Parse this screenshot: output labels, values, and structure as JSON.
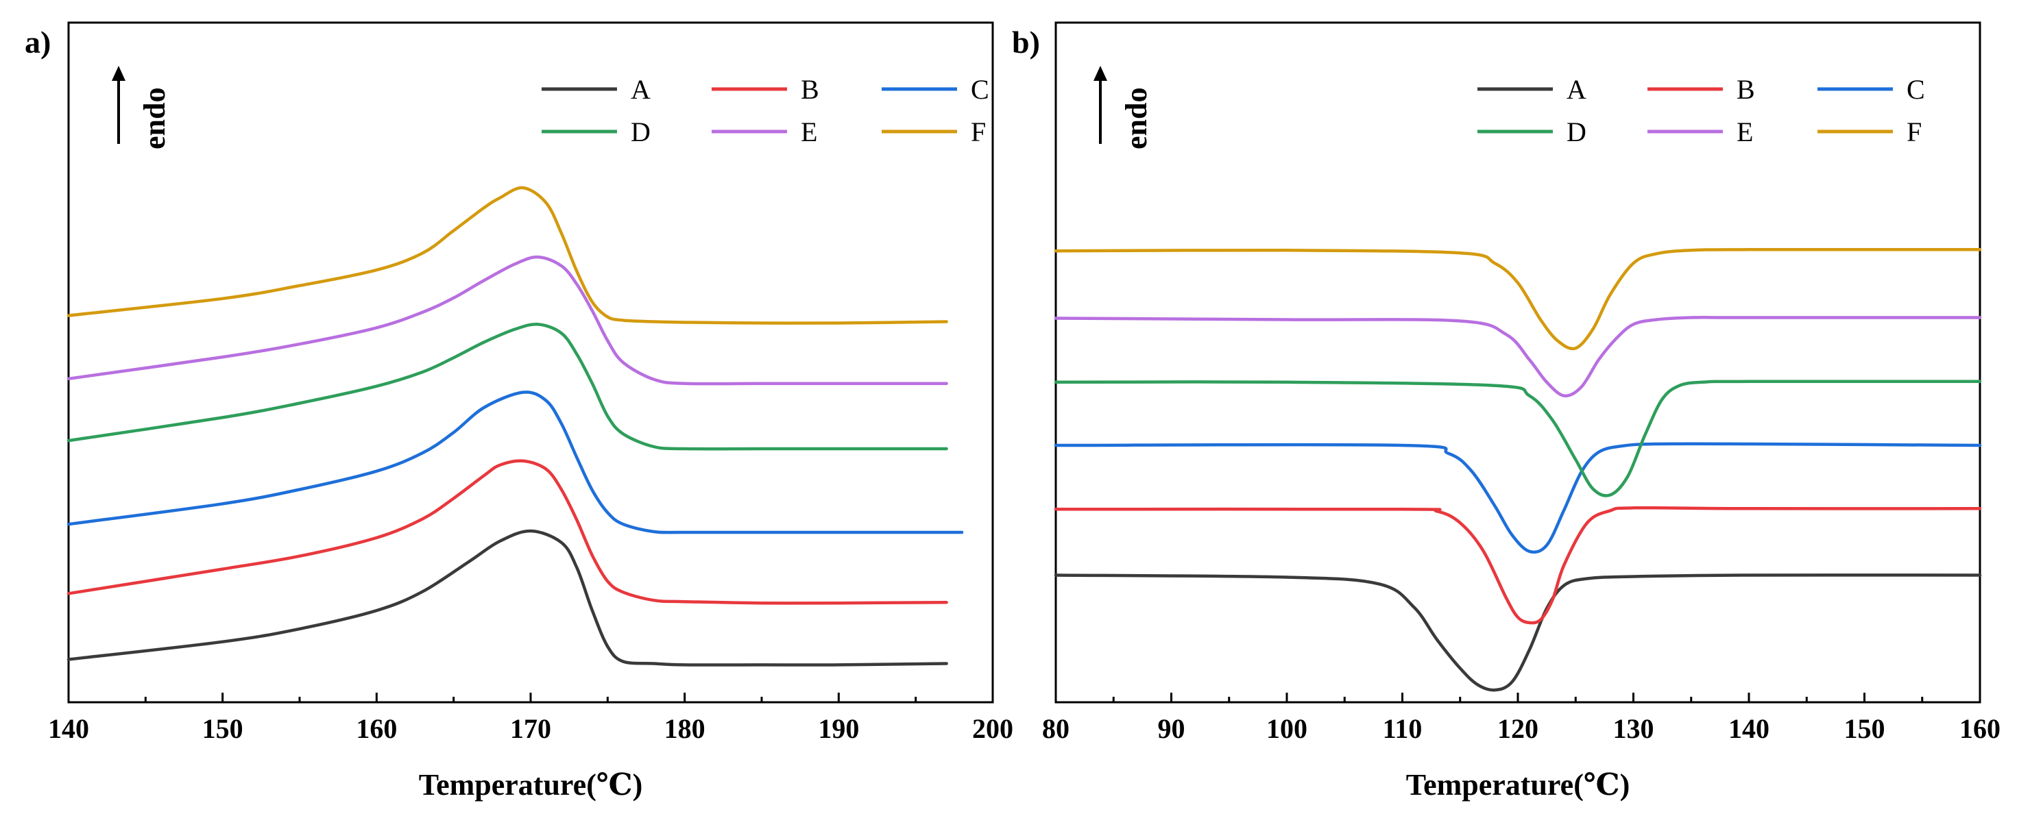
{
  "chart_data": [
    {
      "type": "line",
      "panel_label": "a)",
      "xlabel": "Temperature(℃)",
      "ylabel": "",
      "arrow_label": "endo",
      "xlim": [
        140,
        200
      ],
      "ylim": [
        0,
        1
      ],
      "xticks": [
        "140",
        "150",
        "160",
        "170",
        "180",
        "190",
        "200"
      ],
      "legend_position": "top-right",
      "series": [
        {
          "name": "A",
          "color": "#3a3a3a",
          "x": [
            140,
            150,
            155,
            160,
            163,
            166,
            168,
            170,
            172,
            173,
            174,
            175,
            176,
            178,
            180,
            185,
            190,
            197
          ],
          "y": [
            0.063,
            0.089,
            0.108,
            0.135,
            0.163,
            0.207,
            0.237,
            0.252,
            0.235,
            0.198,
            0.135,
            0.082,
            0.06,
            0.057,
            0.055,
            0.055,
            0.055,
            0.057
          ]
        },
        {
          "name": "B",
          "color": "#e8383d",
          "x": [
            140,
            150,
            155,
            160,
            163,
            165,
            167,
            168,
            169.5,
            171,
            172,
            173,
            174,
            175,
            176,
            178,
            180,
            185,
            190,
            197
          ],
          "y": [
            0.16,
            0.196,
            0.215,
            0.242,
            0.27,
            0.3,
            0.334,
            0.349,
            0.355,
            0.343,
            0.313,
            0.268,
            0.216,
            0.178,
            0.162,
            0.15,
            0.148,
            0.146,
            0.146,
            0.147
          ]
        },
        {
          "name": "C",
          "color": "#1e6fd9",
          "x": [
            140,
            150,
            155,
            160,
            163,
            165,
            167,
            169.5,
            171,
            172,
            173,
            174,
            175,
            176,
            178,
            180,
            185,
            190,
            198
          ],
          "y": [
            0.262,
            0.292,
            0.313,
            0.34,
            0.367,
            0.397,
            0.434,
            0.456,
            0.444,
            0.41,
            0.36,
            0.312,
            0.279,
            0.262,
            0.251,
            0.25,
            0.25,
            0.25,
            0.25
          ]
        },
        {
          "name": "D",
          "color": "#2e9e5b",
          "x": [
            140,
            150,
            155,
            160,
            163,
            165,
            167,
            169,
            170.5,
            172,
            173,
            174,
            175,
            176,
            178,
            180,
            185,
            190,
            197
          ],
          "y": [
            0.385,
            0.419,
            0.44,
            0.465,
            0.486,
            0.507,
            0.53,
            0.549,
            0.556,
            0.543,
            0.512,
            0.469,
            0.421,
            0.395,
            0.376,
            0.373,
            0.373,
            0.373,
            0.373
          ]
        },
        {
          "name": "E",
          "color": "#b86fe0",
          "x": [
            140,
            150,
            155,
            160,
            163,
            165,
            167,
            169,
            170.5,
            172,
            173,
            174,
            175,
            176,
            178,
            180,
            185,
            190,
            197
          ],
          "y": [
            0.476,
            0.508,
            0.527,
            0.551,
            0.574,
            0.595,
            0.621,
            0.645,
            0.655,
            0.642,
            0.615,
            0.576,
            0.532,
            0.5,
            0.475,
            0.469,
            0.469,
            0.469,
            0.469
          ]
        },
        {
          "name": "F",
          "color": "#d49a0e",
          "x": [
            140,
            150,
            155,
            160,
            163,
            165,
            167,
            168,
            169.5,
            171,
            172,
            173,
            174,
            175,
            176,
            178,
            180,
            185,
            190,
            197
          ],
          "y": [
            0.569,
            0.594,
            0.613,
            0.636,
            0.661,
            0.694,
            0.728,
            0.742,
            0.757,
            0.735,
            0.69,
            0.634,
            0.589,
            0.567,
            0.562,
            0.56,
            0.559,
            0.558,
            0.558,
            0.56
          ]
        }
      ]
    },
    {
      "type": "line",
      "panel_label": "b)",
      "xlabel": "Temperature(℃)",
      "ylabel": "",
      "arrow_label": "endo",
      "xlim": [
        80,
        160
      ],
      "ylim": [
        0,
        1
      ],
      "xticks": [
        "80",
        "90",
        "100",
        "110",
        "120",
        "130",
        "140",
        "150",
        "160"
      ],
      "legend_position": "top-right",
      "series": [
        {
          "name": "A",
          "color": "#3a3a3a",
          "x": [
            80,
            100,
            108,
            111,
            113,
            115,
            116.5,
            118,
            119.5,
            121,
            122.5,
            124,
            126,
            130,
            140,
            160
          ],
          "y": [
            0.187,
            0.184,
            0.174,
            0.14,
            0.092,
            0.05,
            0.026,
            0.018,
            0.03,
            0.077,
            0.138,
            0.172,
            0.182,
            0.185,
            0.187,
            0.187
          ]
        },
        {
          "name": "B",
          "color": "#e8383d",
          "x": [
            80,
            110,
            113,
            115,
            117,
            119,
            120,
            121,
            122,
            123,
            124,
            126,
            128,
            130,
            140,
            160
          ],
          "y": [
            0.284,
            0.284,
            0.281,
            0.264,
            0.223,
            0.153,
            0.125,
            0.117,
            0.122,
            0.151,
            0.202,
            0.264,
            0.282,
            0.286,
            0.285,
            0.285
          ]
        },
        {
          "name": "C",
          "color": "#1e6fd9",
          "x": [
            80,
            110,
            114,
            116,
            118,
            119.5,
            121,
            122.5,
            124,
            125.5,
            127,
            129,
            132,
            140,
            160
          ],
          "y": [
            0.378,
            0.378,
            0.366,
            0.34,
            0.289,
            0.246,
            0.222,
            0.231,
            0.283,
            0.339,
            0.368,
            0.377,
            0.38,
            0.38,
            0.378
          ]
        },
        {
          "name": "D",
          "color": "#2e9e5b",
          "x": [
            80,
            100,
            118,
            121,
            123,
            125,
            126.5,
            128,
            129.5,
            131,
            132.5,
            134,
            136,
            140,
            160
          ],
          "y": [
            0.471,
            0.471,
            0.466,
            0.451,
            0.415,
            0.357,
            0.314,
            0.305,
            0.332,
            0.393,
            0.446,
            0.466,
            0.471,
            0.472,
            0.472
          ]
        },
        {
          "name": "E",
          "color": "#b86fe0",
          "x": [
            80,
            100,
            115,
            119,
            121,
            122.5,
            124,
            125.5,
            127,
            128.5,
            130,
            132,
            135,
            140,
            160
          ],
          "y": [
            0.565,
            0.563,
            0.561,
            0.541,
            0.504,
            0.471,
            0.451,
            0.464,
            0.504,
            0.535,
            0.556,
            0.563,
            0.566,
            0.566,
            0.566
          ]
        },
        {
          "name": "F",
          "color": "#d49a0e",
          "x": [
            80,
            100,
            115,
            118,
            120,
            122,
            123.5,
            125,
            126.5,
            128,
            130,
            132,
            135,
            140,
            160
          ],
          "y": [
            0.664,
            0.665,
            0.661,
            0.646,
            0.617,
            0.562,
            0.531,
            0.521,
            0.549,
            0.6,
            0.646,
            0.66,
            0.665,
            0.666,
            0.666
          ]
        }
      ]
    }
  ]
}
